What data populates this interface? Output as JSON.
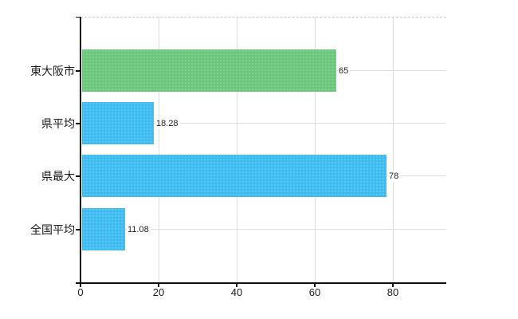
{
  "chart_data": {
    "type": "bar",
    "orientation": "horizontal",
    "title": "",
    "categories": [
      "東大阪市",
      "県平均",
      "県最大",
      "全国平均"
    ],
    "values": [
      65,
      18.28,
      78,
      11.08
    ],
    "value_labels": [
      "65",
      "18.28",
      "78",
      "11.08"
    ],
    "bar_colors": [
      "#6CC77D",
      "#3EBCF2",
      "#3EBCF2",
      "#3EBCF2"
    ],
    "x_ticks": [
      "0",
      "20",
      "40",
      "60",
      "80"
    ],
    "xlim": [
      0,
      93.7
    ],
    "grid": true,
    "legend": "none",
    "axis_color": "#111111",
    "gridline_color": "#dedede",
    "background_color": "#ffffff"
  }
}
